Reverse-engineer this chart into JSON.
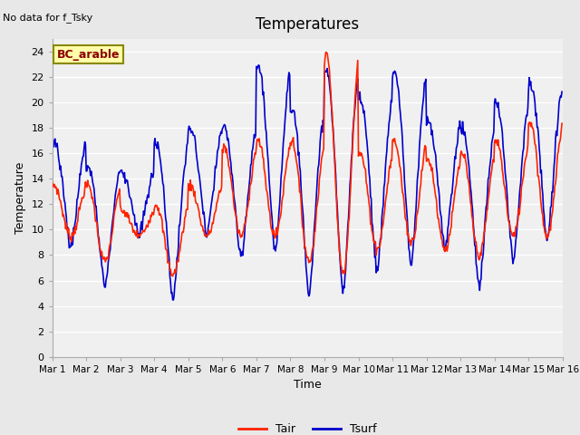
{
  "title": "Temperatures",
  "xlabel": "Time",
  "ylabel": "Temperature",
  "note": "No data for f_Tsky",
  "box_label": "BC_arable",
  "ylim": [
    0,
    25
  ],
  "yticks": [
    0,
    2,
    4,
    6,
    8,
    10,
    12,
    14,
    16,
    18,
    20,
    22,
    24
  ],
  "xtick_labels": [
    "Mar 1",
    "Mar 2",
    "Mar 3",
    "Mar 4",
    "Mar 5",
    "Mar 6",
    "Mar 7",
    "Mar 8",
    "Mar 9",
    "Mar 10",
    "Mar 11",
    "Mar 12",
    "Mar 13",
    "Mar 14",
    "Mar 15",
    "Mar 16"
  ],
  "tair_color": "#ff2200",
  "tsurf_color": "#0000cc",
  "fig_bg_color": "#e8e8e8",
  "plot_bg_color": "#f0f0f0",
  "grid_color": "#ffffff",
  "legend_tair": "Tair",
  "legend_tsurf": "Tsurf",
  "linewidth": 1.2
}
